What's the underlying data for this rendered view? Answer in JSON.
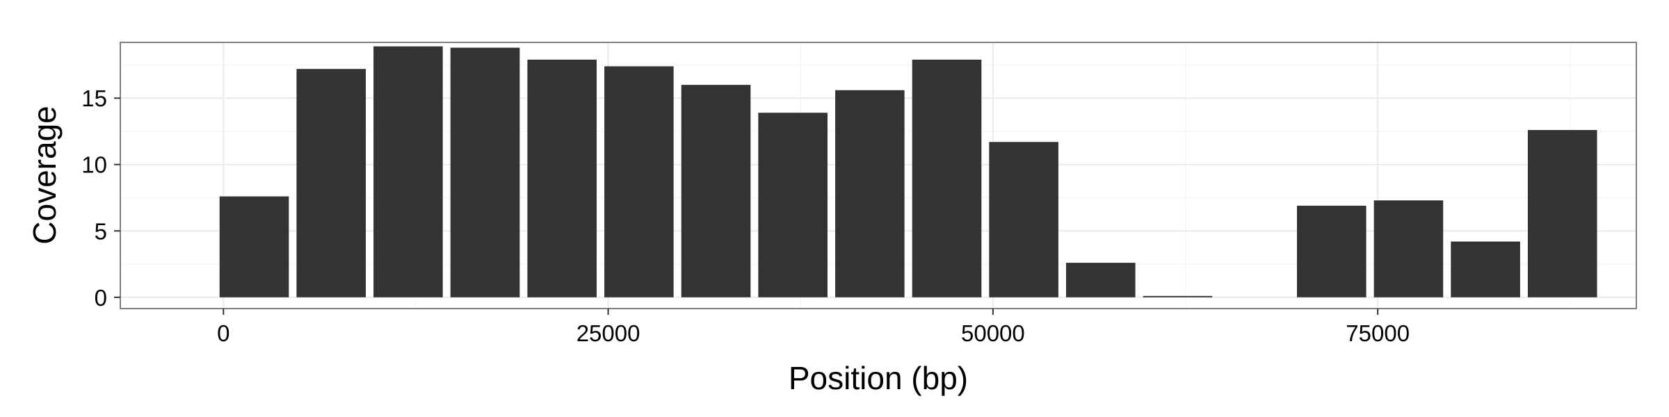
{
  "chart_data": {
    "type": "bar",
    "title": "",
    "xlabel": "Position (bp)",
    "ylabel": "Coverage",
    "xlim": [
      -6700,
      91800
    ],
    "ylim": [
      -0.85,
      19.2
    ],
    "x_ticks": [
      0,
      25000,
      50000,
      75000
    ],
    "y_ticks": [
      0,
      5,
      10,
      15
    ],
    "bar_width": 4500,
    "x": [
      2000,
      7000,
      12000,
      17000,
      22000,
      27000,
      32000,
      37000,
      42000,
      47000,
      52000,
      57000,
      62000,
      67000,
      72000,
      77000,
      82000,
      87000
    ],
    "values": [
      7.6,
      17.2,
      18.9,
      18.8,
      17.9,
      17.4,
      16.0,
      13.9,
      15.6,
      17.9,
      11.7,
      2.6,
      0.1,
      0,
      6.9,
      7.3,
      4.2,
      12.6
    ],
    "grid": true,
    "colors": {
      "bar": "#333333",
      "panel_border": "#7f7f7f",
      "grid_major": "#ebebeb",
      "grid_minor": "#f5f5f5"
    }
  }
}
